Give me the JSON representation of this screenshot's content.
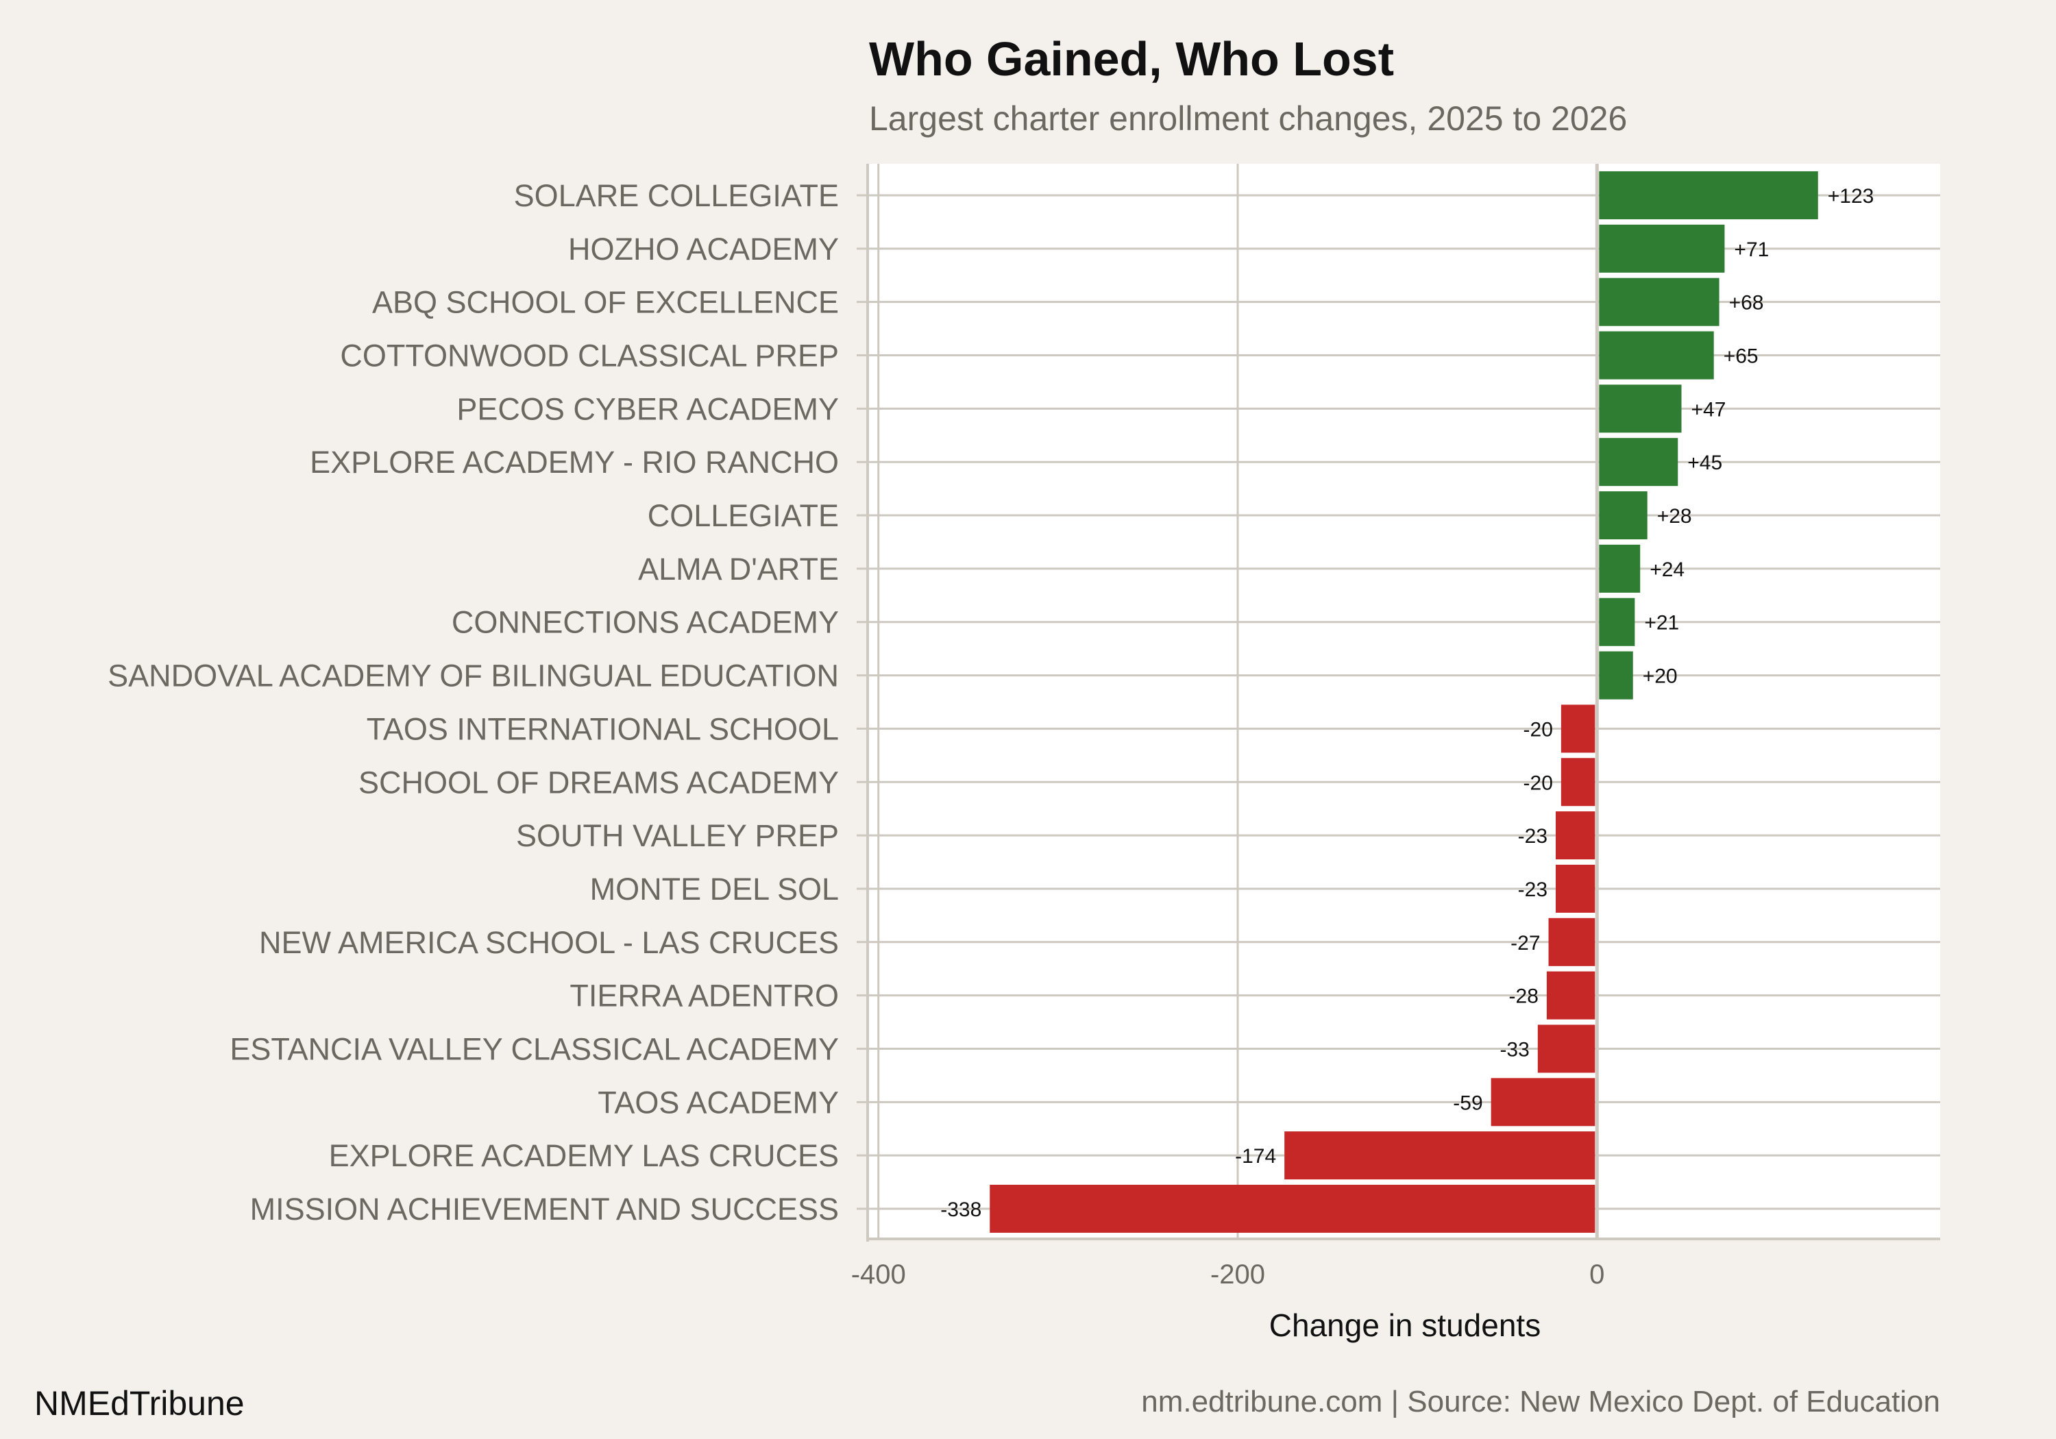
{
  "chart_data": {
    "type": "bar",
    "orientation": "horizontal",
    "title": "Who Gained, Who Lost",
    "subtitle": "Largest charter enrollment changes, 2025 to 2026",
    "xlabel": "Change in students",
    "ylabel": "",
    "xlim": [
      -406,
      191
    ],
    "xticks": [
      -400,
      -200,
      0
    ],
    "grid": true,
    "categories": [
      "SOLARE COLLEGIATE",
      "HOZHO ACADEMY",
      "ABQ SCHOOL OF EXCELLENCE",
      "COTTONWOOD CLASSICAL PREP",
      "PECOS CYBER ACADEMY",
      "EXPLORE ACADEMY - RIO RANCHO",
      "COLLEGIATE",
      "ALMA D'ARTE",
      "CONNECTIONS ACADEMY",
      "SANDOVAL ACADEMY OF BILINGUAL EDUCATION",
      "TAOS INTERNATIONAL SCHOOL",
      "SCHOOL OF DREAMS ACADEMY",
      "SOUTH VALLEY PREP",
      "MONTE DEL SOL",
      "NEW AMERICA SCHOOL - LAS CRUCES",
      "TIERRA ADENTRO",
      "ESTANCIA VALLEY CLASSICAL ACADEMY",
      "TAOS ACADEMY",
      "EXPLORE ACADEMY LAS CRUCES",
      "MISSION ACHIEVEMENT AND SUCCESS"
    ],
    "values": [
      123,
      71,
      68,
      65,
      47,
      45,
      28,
      24,
      21,
      20,
      -20,
      -20,
      -23,
      -23,
      -27,
      -28,
      -33,
      -59,
      -174,
      -338
    ],
    "data_labels": [
      "+123",
      "+71",
      "+68",
      "+65",
      "+47",
      "+45",
      "+28",
      "+24",
      "+21",
      "+20",
      "-20",
      "-20",
      "-23",
      "-23",
      "-27",
      "-28",
      "-33",
      "-59",
      "-174",
      "-338"
    ],
    "colors": {
      "gain": "#2e7d32",
      "loss": "#c62828",
      "panel": "#ffffff",
      "background": "#f4f1ec",
      "grid": "#cdc8c0"
    }
  },
  "footer": {
    "brand": "NMEdTribune",
    "source": "nm.edtribune.com | Source: New Mexico Dept. of Education"
  }
}
